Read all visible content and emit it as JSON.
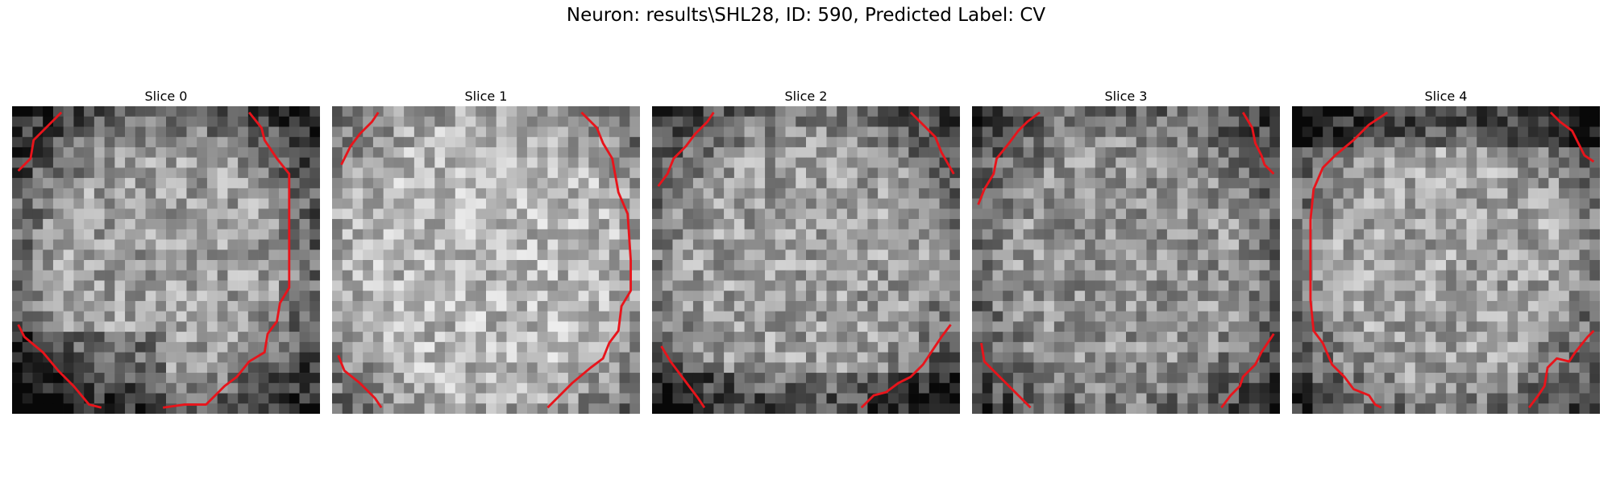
{
  "figure": {
    "title": "Neuron: results\\SHL28, ID: 590, Predicted Label: CV"
  },
  "colors": {
    "contour": "#e8141b",
    "background": "#ffffff"
  },
  "image_grid": {
    "cells_per_side": 30
  },
  "slices": [
    {
      "label": "Slice 0",
      "seed": 11,
      "style": "ring-left",
      "contours": [
        [
          [
            0.02,
            0.21
          ],
          [
            0.06,
            0.17
          ],
          [
            0.07,
            0.11
          ],
          [
            0.11,
            0.07
          ],
          [
            0.16,
            0.02
          ]
        ],
        [
          [
            0.77,
            0.02
          ],
          [
            0.81,
            0.07
          ],
          [
            0.82,
            0.11
          ],
          [
            0.86,
            0.17
          ],
          [
            0.9,
            0.22
          ],
          [
            0.9,
            0.43
          ],
          [
            0.9,
            0.59
          ],
          [
            0.87,
            0.64
          ],
          [
            0.86,
            0.7
          ],
          [
            0.83,
            0.74
          ],
          [
            0.82,
            0.8
          ],
          [
            0.77,
            0.83
          ],
          [
            0.73,
            0.88
          ],
          [
            0.69,
            0.91
          ],
          [
            0.66,
            0.94
          ],
          [
            0.63,
            0.97
          ],
          [
            0.56,
            0.97
          ],
          [
            0.49,
            0.98
          ]
        ],
        [
          [
            0.02,
            0.71
          ],
          [
            0.04,
            0.75
          ],
          [
            0.1,
            0.8
          ],
          [
            0.15,
            0.86
          ],
          [
            0.2,
            0.91
          ],
          [
            0.25,
            0.97
          ],
          [
            0.29,
            0.98
          ]
        ]
      ]
    },
    {
      "label": "Slice 1",
      "seed": 27,
      "style": "bright",
      "contours": [
        [
          [
            0.03,
            0.19
          ],
          [
            0.06,
            0.13
          ],
          [
            0.09,
            0.09
          ],
          [
            0.13,
            0.05
          ],
          [
            0.15,
            0.02
          ]
        ],
        [
          [
            0.81,
            0.02
          ],
          [
            0.86,
            0.07
          ],
          [
            0.88,
            0.12
          ],
          [
            0.91,
            0.17
          ],
          [
            0.93,
            0.28
          ],
          [
            0.96,
            0.35
          ],
          [
            0.97,
            0.5
          ],
          [
            0.97,
            0.6
          ],
          [
            0.94,
            0.65
          ],
          [
            0.93,
            0.73
          ],
          [
            0.9,
            0.77
          ],
          [
            0.88,
            0.82
          ],
          [
            0.84,
            0.85
          ],
          [
            0.78,
            0.9
          ],
          [
            0.74,
            0.94
          ],
          [
            0.7,
            0.98
          ]
        ],
        [
          [
            0.02,
            0.81
          ],
          [
            0.04,
            0.86
          ],
          [
            0.09,
            0.9
          ],
          [
            0.14,
            0.95
          ],
          [
            0.16,
            0.98
          ]
        ]
      ]
    },
    {
      "label": "Slice 2",
      "seed": 43,
      "style": "ring-bottom",
      "contours": [
        [
          [
            0.02,
            0.26
          ],
          [
            0.05,
            0.22
          ],
          [
            0.07,
            0.17
          ],
          [
            0.11,
            0.13
          ],
          [
            0.14,
            0.09
          ],
          [
            0.18,
            0.05
          ],
          [
            0.2,
            0.02
          ]
        ],
        [
          [
            0.84,
            0.02
          ],
          [
            0.88,
            0.06
          ],
          [
            0.92,
            0.1
          ],
          [
            0.94,
            0.15
          ],
          [
            0.98,
            0.22
          ]
        ],
        [
          [
            0.03,
            0.78
          ],
          [
            0.06,
            0.83
          ],
          [
            0.09,
            0.87
          ],
          [
            0.12,
            0.91
          ],
          [
            0.15,
            0.95
          ],
          [
            0.17,
            0.98
          ]
        ],
        [
          [
            0.68,
            0.98
          ],
          [
            0.72,
            0.94
          ],
          [
            0.76,
            0.93
          ],
          [
            0.8,
            0.9
          ],
          [
            0.84,
            0.88
          ],
          [
            0.88,
            0.84
          ],
          [
            0.92,
            0.78
          ],
          [
            0.94,
            0.75
          ],
          [
            0.97,
            0.71
          ]
        ]
      ]
    },
    {
      "label": "Slice 3",
      "seed": 59,
      "style": "dark-noisy",
      "contours": [
        [
          [
            0.02,
            0.32
          ],
          [
            0.04,
            0.27
          ],
          [
            0.07,
            0.22
          ],
          [
            0.08,
            0.17
          ],
          [
            0.12,
            0.12
          ],
          [
            0.15,
            0.08
          ],
          [
            0.18,
            0.05
          ],
          [
            0.22,
            0.02
          ]
        ],
        [
          [
            0.88,
            0.02
          ],
          [
            0.91,
            0.07
          ],
          [
            0.92,
            0.12
          ],
          [
            0.94,
            0.16
          ],
          [
            0.95,
            0.19
          ],
          [
            0.98,
            0.22
          ]
        ],
        [
          [
            0.03,
            0.77
          ],
          [
            0.04,
            0.83
          ],
          [
            0.08,
            0.87
          ],
          [
            0.12,
            0.91
          ],
          [
            0.16,
            0.95
          ],
          [
            0.19,
            0.98
          ]
        ],
        [
          [
            0.81,
            0.98
          ],
          [
            0.84,
            0.94
          ],
          [
            0.87,
            0.91
          ],
          [
            0.88,
            0.88
          ],
          [
            0.92,
            0.84
          ],
          [
            0.94,
            0.8
          ],
          [
            0.98,
            0.74
          ]
        ]
      ]
    },
    {
      "label": "Slice 4",
      "seed": 73,
      "style": "ring-full",
      "contours": [
        [
          [
            0.31,
            0.02
          ],
          [
            0.25,
            0.06
          ],
          [
            0.2,
            0.11
          ],
          [
            0.14,
            0.16
          ],
          [
            0.1,
            0.2
          ],
          [
            0.07,
            0.27
          ],
          [
            0.06,
            0.37
          ],
          [
            0.06,
            0.5
          ],
          [
            0.06,
            0.63
          ],
          [
            0.07,
            0.73
          ],
          [
            0.1,
            0.77
          ],
          [
            0.13,
            0.84
          ],
          [
            0.17,
            0.88
          ],
          [
            0.2,
            0.92
          ],
          [
            0.25,
            0.94
          ],
          [
            0.27,
            0.97
          ],
          [
            0.29,
            0.98
          ]
        ],
        [
          [
            0.84,
            0.02
          ],
          [
            0.87,
            0.05
          ],
          [
            0.91,
            0.08
          ],
          [
            0.93,
            0.12
          ],
          [
            0.95,
            0.16
          ],
          [
            0.98,
            0.18
          ]
        ],
        [
          [
            0.77,
            0.98
          ],
          [
            0.8,
            0.94
          ],
          [
            0.82,
            0.91
          ],
          [
            0.83,
            0.85
          ],
          [
            0.86,
            0.82
          ],
          [
            0.9,
            0.83
          ],
          [
            0.92,
            0.8
          ],
          [
            0.96,
            0.75
          ],
          [
            0.98,
            0.73
          ]
        ]
      ]
    }
  ]
}
